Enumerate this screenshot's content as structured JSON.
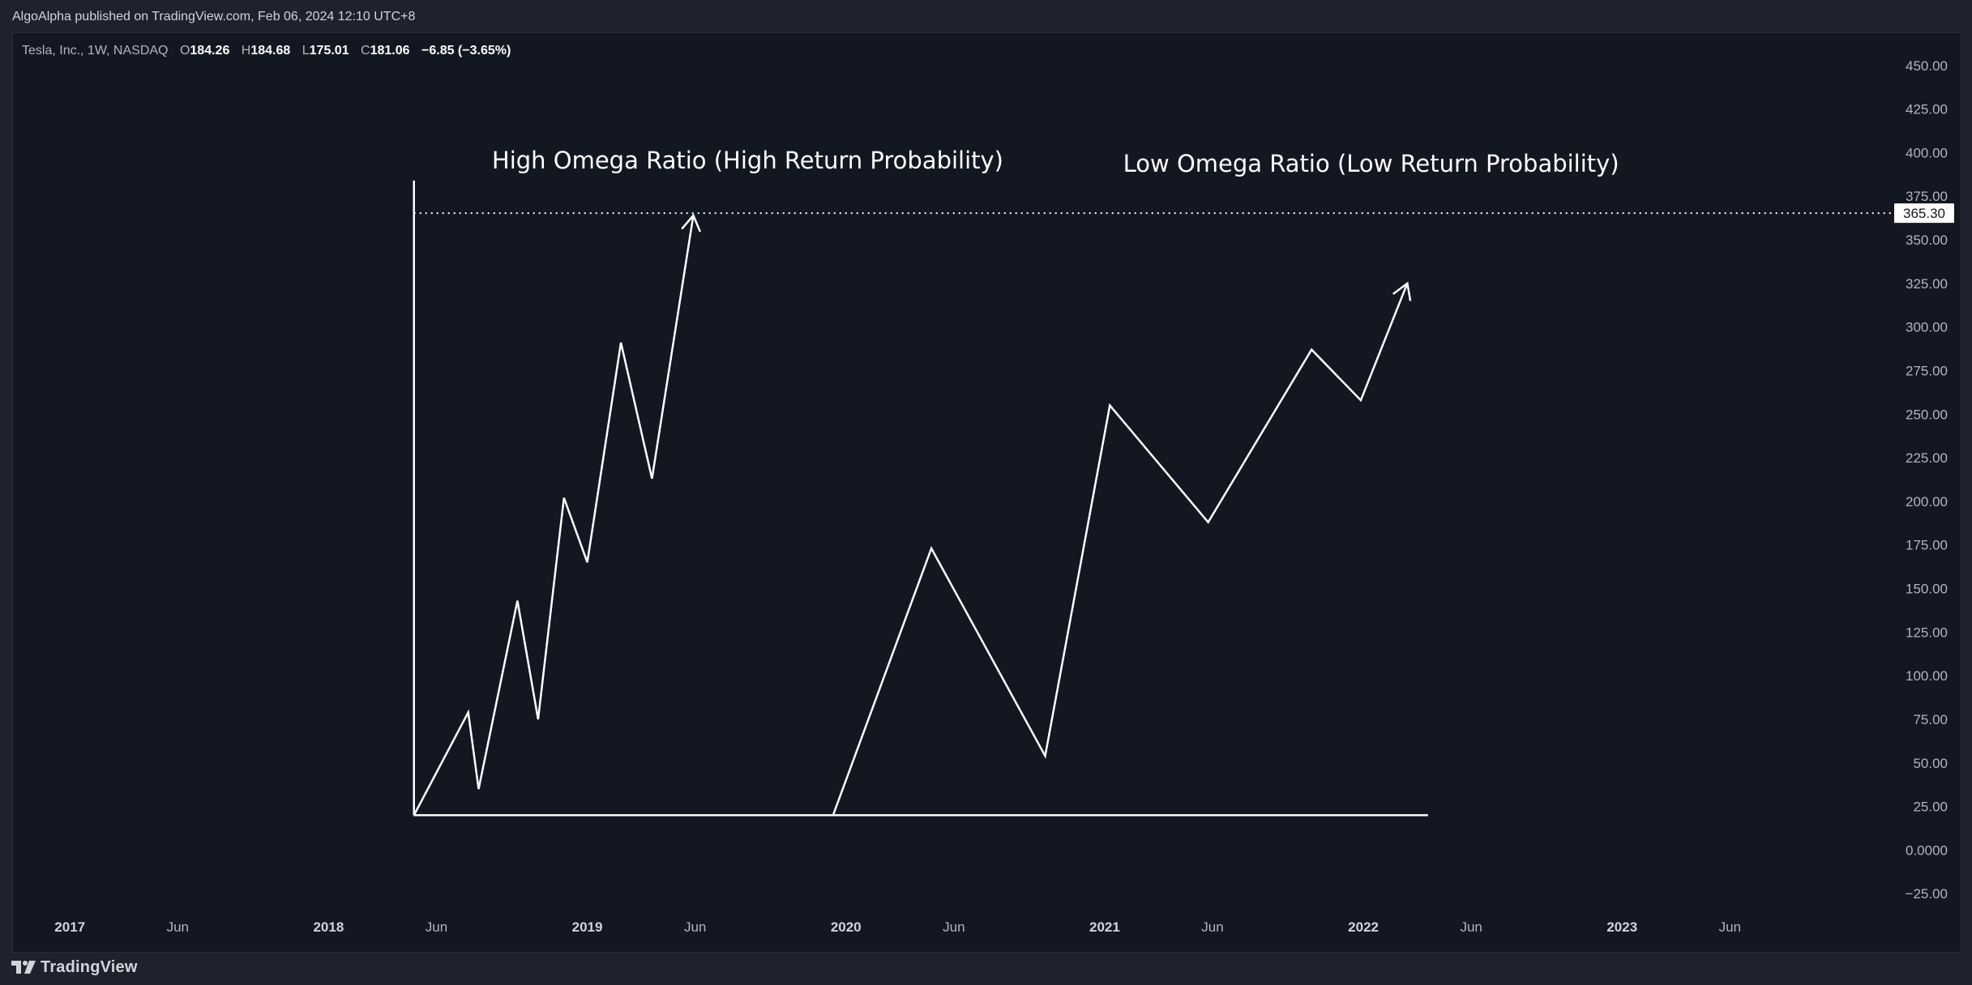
{
  "header": {
    "published": "AlgoAlpha published on TradingView.com, Feb 06, 2024 12:10 UTC+8"
  },
  "legend": {
    "symbol": "Tesla, Inc., 1W, NASDAQ",
    "o_label": "O",
    "o_value": "184.26",
    "h_label": "H",
    "h_value": "184.68",
    "l_label": "L",
    "l_value": "175.01",
    "c_label": "C",
    "c_value": "181.06",
    "change": "−6.85 (−3.65%)"
  },
  "footer": {
    "brand": "TradingView"
  },
  "colors": {
    "background": "#131722",
    "line": "#ffffff",
    "text": "#b2b5be"
  },
  "chart_data": {
    "type": "line",
    "y_ticks": [
      "450.00",
      "425.00",
      "400.00",
      "375.00",
      "350.00",
      "325.00",
      "300.00",
      "275.00",
      "250.00",
      "225.00",
      "200.00",
      "175.00",
      "150.00",
      "125.00",
      "100.00",
      "75.00",
      "50.00",
      "25.00",
      "0.0000",
      "−25.00"
    ],
    "y_tick_values": [
      450,
      425,
      400,
      375,
      350,
      325,
      300,
      275,
      250,
      225,
      200,
      175,
      150,
      125,
      100,
      75,
      50,
      25,
      0,
      -25
    ],
    "ylim": [
      -30,
      455
    ],
    "x_ticks": [
      {
        "label": "2017",
        "x": 2017.0,
        "year": true
      },
      {
        "label": "Jun",
        "x": 2017.417,
        "year": false
      },
      {
        "label": "2018",
        "x": 2018.0,
        "year": true
      },
      {
        "label": "Jun",
        "x": 2018.417,
        "year": false
      },
      {
        "label": "2019",
        "x": 2019.0,
        "year": true
      },
      {
        "label": "Jun",
        "x": 2019.417,
        "year": false
      },
      {
        "label": "2020",
        "x": 2020.0,
        "year": true
      },
      {
        "label": "Jun",
        "x": 2020.417,
        "year": false
      },
      {
        "label": "2021",
        "x": 2021.0,
        "year": true
      },
      {
        "label": "Jun",
        "x": 2021.417,
        "year": false
      },
      {
        "label": "2022",
        "x": 2022.0,
        "year": true
      },
      {
        "label": "Jun",
        "x": 2022.417,
        "year": false
      },
      {
        "label": "2023",
        "x": 2023.0,
        "year": true
      },
      {
        "label": "Jun",
        "x": 2023.417,
        "year": false
      }
    ],
    "xlim": [
      2016.78,
      2024.03
    ],
    "current_price": "365.30",
    "current_price_value": 365.3,
    "axis_lines": [
      {
        "x1": 2018.33,
        "y1": 384,
        "x2": 2018.33,
        "y2": 20
      },
      {
        "x1": 2018.33,
        "y1": 20,
        "x2": 2022.25,
        "y2": 20
      }
    ],
    "series": [
      {
        "points": [
          [
            2018.33,
            20
          ],
          [
            2018.54,
            79
          ],
          [
            2018.58,
            35
          ],
          [
            2018.73,
            143
          ],
          [
            2018.81,
            75
          ],
          [
            2018.91,
            202
          ],
          [
            2019.0,
            165
          ],
          [
            2019.13,
            291
          ],
          [
            2019.25,
            213
          ],
          [
            2019.41,
            364
          ]
        ],
        "arrow": true
      },
      {
        "points": [
          [
            2019.95,
            20
          ],
          [
            2020.33,
            173
          ],
          [
            2020.77,
            54
          ],
          [
            2021.02,
            255
          ],
          [
            2021.4,
            188
          ],
          [
            2021.8,
            287
          ],
          [
            2021.99,
            258
          ],
          [
            2022.17,
            325
          ]
        ],
        "arrow": true
      }
    ],
    "annotations": [
      {
        "text": "High Omega Ratio (High Return Probability)",
        "x": 2019.62,
        "y": 391
      },
      {
        "text": "Low Omega Ratio (Low Return Probability)",
        "x": 2022.03,
        "y": 389
      }
    ]
  }
}
